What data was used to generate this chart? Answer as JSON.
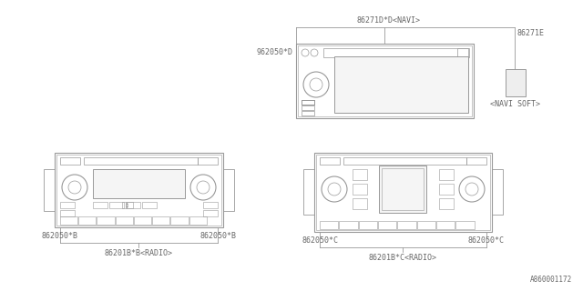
{
  "bg_color": "#ffffff",
  "line_color": "#999999",
  "text_color": "#666666",
  "watermark": "A860001172",
  "navi_label_top": "86271D*D<NAVI>",
  "navi_label_left": "962050*D",
  "navi_label_right": "86271E",
  "navi_soft": "<NAVI SOFT>",
  "radio_b_label_left": "862050*B",
  "radio_b_label_right": "862050*B",
  "radio_b_label_bottom": "86201B*B<RADIO>",
  "radio_c_label_left": "862050*C",
  "radio_c_label_right": "862050*C",
  "radio_c_label_bottom": "86201B*C<RADIO>"
}
